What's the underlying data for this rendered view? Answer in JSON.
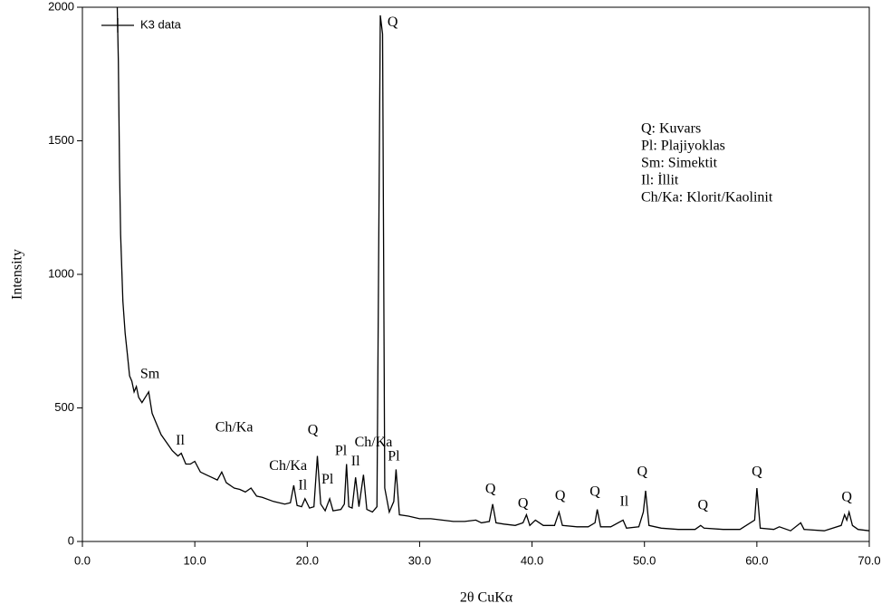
{
  "chart_data": {
    "type": "line",
    "x_label": "2θ CuKα",
    "y_label": "Intensity",
    "xlim": [
      0,
      70
    ],
    "ylim": [
      0,
      2000
    ],
    "xticks": [
      {
        "value": 0,
        "label": "0.0"
      },
      {
        "value": 10,
        "label": "10.0"
      },
      {
        "value": 20,
        "label": "20.0"
      },
      {
        "value": 30,
        "label": "30.0"
      },
      {
        "value": 40,
        "label": "40.0"
      },
      {
        "value": 50,
        "label": "50.0"
      },
      {
        "value": 60,
        "label": "60.0"
      },
      {
        "value": 70,
        "label": "70.0"
      }
    ],
    "yticks": [
      0,
      500,
      1000,
      1500,
      2000
    ],
    "legend": "upper left",
    "notes": [
      "Q: Kuvars",
      "Pl: Plajiyoklas",
      "Sm: Simektit",
      "Il: İllit",
      "Ch/Ka: Klorit/Kaolinit"
    ],
    "annotations": [
      {
        "text": "Q",
        "x": 27.6,
        "y": 1942
      },
      {
        "text": "Sm",
        "x": 6.0,
        "y": 624
      },
      {
        "text": "Il",
        "x": 8.7,
        "y": 376
      },
      {
        "text": "Ch/Ka",
        "x": 13.5,
        "y": 424
      },
      {
        "text": "Ch/Ka",
        "x": 18.3,
        "y": 281
      },
      {
        "text": "Il",
        "x": 19.6,
        "y": 207
      },
      {
        "text": "Q",
        "x": 20.5,
        "y": 414
      },
      {
        "text": "Pl",
        "x": 21.8,
        "y": 230
      },
      {
        "text": "Pl",
        "x": 23.0,
        "y": 336
      },
      {
        "text": "Il",
        "x": 24.3,
        "y": 298
      },
      {
        "text": "Ch/Ka",
        "x": 25.9,
        "y": 369
      },
      {
        "text": "Pl",
        "x": 27.7,
        "y": 315
      },
      {
        "text": "Q",
        "x": 36.3,
        "y": 193
      },
      {
        "text": "Q",
        "x": 39.2,
        "y": 139
      },
      {
        "text": "Q",
        "x": 42.5,
        "y": 169
      },
      {
        "text": "Q",
        "x": 45.6,
        "y": 183
      },
      {
        "text": "Il",
        "x": 48.2,
        "y": 146
      },
      {
        "text": "Q",
        "x": 49.8,
        "y": 258
      },
      {
        "text": "Q",
        "x": 55.2,
        "y": 132
      },
      {
        "text": "Q",
        "x": 60.0,
        "y": 258
      },
      {
        "text": "Q",
        "x": 68.0,
        "y": 163
      }
    ],
    "series": [
      {
        "name": "K3 data",
        "color": "#000000",
        "x": [
          3.1,
          3.2,
          3.3,
          3.4,
          3.6,
          3.8,
          4.0,
          4.2,
          4.4,
          4.6,
          4.8,
          5.0,
          5.3,
          5.6,
          5.9,
          6.2,
          6.6,
          7.0,
          7.5,
          8.0,
          8.5,
          8.8,
          9.2,
          9.6,
          10.0,
          10.5,
          11.0,
          11.5,
          12.0,
          12.4,
          12.8,
          13.5,
          14.0,
          14.5,
          15.0,
          15.5,
          16.0,
          17.0,
          18.0,
          18.5,
          18.8,
          19.1,
          19.5,
          19.8,
          20.2,
          20.6,
          20.9,
          21.2,
          21.6,
          22.0,
          22.3,
          23.0,
          23.3,
          23.5,
          23.7,
          24.0,
          24.3,
          24.6,
          25.0,
          25.3,
          25.8,
          26.2,
          26.5,
          26.7,
          26.9,
          27.3,
          27.7,
          27.9,
          28.2,
          29.0,
          30.0,
          31.0,
          32.0,
          33.0,
          34.0,
          35.0,
          35.5,
          36.2,
          36.5,
          36.8,
          37.5,
          38.5,
          39.2,
          39.5,
          39.8,
          40.3,
          41.0,
          42.0,
          42.4,
          42.7,
          44.0,
          45.0,
          45.6,
          45.8,
          46.1,
          47.0,
          48.1,
          48.4,
          49.5,
          49.9,
          50.1,
          50.4,
          51.5,
          53.0,
          54.5,
          55.0,
          55.3,
          57.0,
          58.5,
          59.8,
          60.0,
          60.3,
          61.5,
          62.0,
          63.0,
          63.9,
          64.2,
          66.0,
          67.5,
          67.8,
          68.0,
          68.2,
          68.5,
          69.0,
          70.0
        ],
        "values": [
          2000,
          1800,
          1400,
          1150,
          900,
          780,
          700,
          620,
          600,
          560,
          580,
          540,
          520,
          540,
          560,
          480,
          440,
          400,
          370,
          340,
          320,
          330,
          290,
          290,
          300,
          260,
          250,
          240,
          230,
          260,
          220,
          200,
          195,
          185,
          200,
          170,
          165,
          150,
          140,
          145,
          210,
          135,
          130,
          160,
          125,
          130,
          320,
          140,
          115,
          160,
          115,
          120,
          140,
          290,
          130,
          125,
          240,
          130,
          250,
          120,
          110,
          130,
          1970,
          1900,
          200,
          110,
          150,
          270,
          100,
          95,
          85,
          85,
          80,
          75,
          75,
          80,
          70,
          75,
          140,
          70,
          65,
          60,
          70,
          100,
          60,
          80,
          60,
          60,
          110,
          60,
          55,
          55,
          70,
          120,
          55,
          55,
          80,
          50,
          55,
          110,
          190,
          60,
          50,
          45,
          45,
          60,
          50,
          45,
          45,
          80,
          200,
          50,
          45,
          55,
          40,
          70,
          45,
          40,
          60,
          100,
          80,
          110,
          60,
          45,
          40
        ]
      }
    ]
  }
}
